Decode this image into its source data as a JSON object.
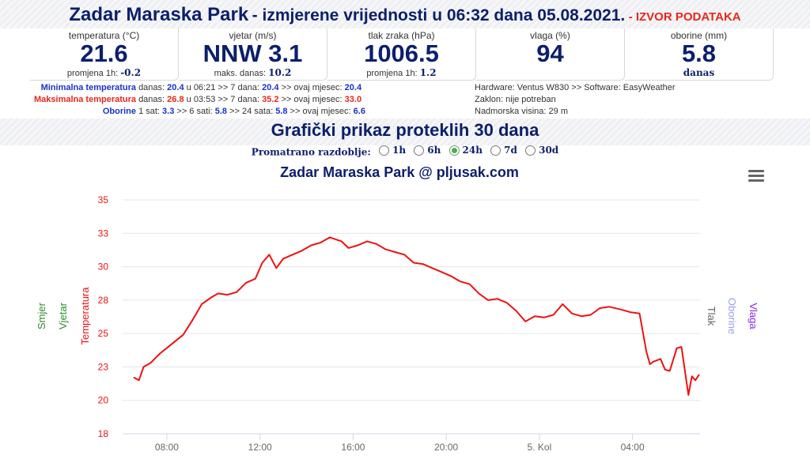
{
  "header": {
    "station": "Zadar Maraska Park",
    "text": "- izmjerene vrijednosti u 06:32 dana 05.08.2021.",
    "source_link": "- IZVOR PODATAKA"
  },
  "metrics": [
    {
      "label": "temperatura (°C)",
      "value": "21.6",
      "sub_label": "promjena 1h:",
      "sub_value": "-0.2"
    },
    {
      "label": "vjetar (m/s)",
      "value": "NNW 3.1",
      "sub_label": "maks. danas:",
      "sub_value": "10.2"
    },
    {
      "label": "tlak zraka (hPa)",
      "value": "1006.5",
      "sub_label": "promjena 1h:",
      "sub_value": "1.2"
    },
    {
      "label": "vlaga (%)",
      "value": "94",
      "sub_label": "",
      "sub_value": ""
    },
    {
      "label": "oborine (mm)",
      "value": "5.8",
      "sub_label": "danas",
      "sub_value": ""
    }
  ],
  "stats": {
    "min": {
      "label": "Minimalna temperatura",
      "p1": "danas:",
      "v1": "20.4",
      "p2": "u 06:21 >> 7 dana:",
      "v2": "20.4",
      "p3": ">> ovaj mjesec:",
      "v3": "20.4"
    },
    "max": {
      "label": "Maksimalna temperatura",
      "p1": "danas:",
      "v1": "26.8",
      "p2": "u 03:53 >> 7 dana:",
      "v2": "35.2",
      "p3": ">> ovaj mjesec:",
      "v3": "33.0"
    },
    "rain": {
      "label": "Oborine",
      "p1": "1 sat:",
      "v1": "3.3",
      "p2": ">> 6 sati:",
      "v2": "5.8",
      "p3": ">> 24 sata:",
      "v3": "5.8",
      "p4": ">> ovaj mjesec:",
      "v4": "6.6"
    }
  },
  "station_info": {
    "hardware": "Hardware: Ventus W830 >> Software: EasyWeather",
    "shelter": "Zaklon: nije potreban",
    "altitude": "Nadmorska visina: 29 m"
  },
  "section_title": "Grafički prikaz proteklih 30 dana",
  "period": {
    "label": "Promatrano razdoblje:",
    "options": [
      "1h",
      "6h",
      "24h",
      "7d",
      "30d"
    ],
    "selected": "24h"
  },
  "chart_data": {
    "type": "line",
    "title": "Zadar Maraska Park @ pljusak.com",
    "y_ticks": [
      "35",
      "33",
      "30",
      "28",
      "25",
      "23",
      "20",
      "18"
    ],
    "x_ticks": [
      "08:00",
      "12:00",
      "16:00",
      "20:00",
      "5. Kol",
      "04:00"
    ],
    "left_axis_titles": [
      "Smjer",
      "Vjetar",
      "Temperatura"
    ],
    "right_axis_titles": [
      "Tlak",
      "Oborine",
      "Vlaga"
    ],
    "series": [
      {
        "name": "Temperatura",
        "color": "#ee1111",
        "x": [
          6.6,
          6.8,
          7.0,
          7.3,
          7.7,
          8.2,
          8.7,
          9.1,
          9.5,
          9.9,
          10.2,
          10.6,
          11.0,
          11.4,
          11.8,
          12.1,
          12.4,
          12.7,
          13.0,
          13.4,
          13.8,
          14.2,
          14.6,
          15.0,
          15.5,
          15.8,
          16.2,
          16.6,
          17.0,
          17.4,
          17.8,
          18.2,
          18.6,
          19.0,
          19.4,
          19.8,
          20.2,
          20.6,
          21.0,
          21.4,
          21.8,
          22.2,
          22.6,
          23.0,
          23.4,
          23.8,
          24.2,
          24.6,
          25.0,
          25.4,
          25.8,
          26.2,
          26.6,
          27.0,
          27.5,
          27.9,
          28.3,
          28.6,
          28.75,
          28.9,
          29.2,
          29.4,
          29.6,
          29.9,
          30.1,
          30.4,
          30.55,
          30.7,
          30.85
        ],
        "y": [
          21.7,
          21.5,
          22.5,
          22.8,
          23.5,
          24.2,
          24.9,
          26.0,
          27.2,
          27.7,
          28.0,
          27.9,
          28.1,
          28.8,
          29.1,
          30.3,
          30.9,
          29.9,
          30.6,
          30.9,
          31.2,
          31.6,
          31.8,
          32.2,
          31.9,
          31.4,
          31.6,
          31.9,
          31.7,
          31.3,
          31.1,
          30.9,
          30.3,
          30.2,
          29.9,
          29.6,
          29.3,
          28.9,
          28.7,
          28.0,
          27.5,
          27.6,
          27.3,
          26.7,
          25.9,
          26.3,
          26.2,
          26.4,
          27.2,
          26.5,
          26.3,
          26.4,
          26.9,
          27.0,
          26.8,
          26.6,
          26.5,
          23.6,
          22.7,
          22.9,
          23.1,
          22.3,
          22.2,
          23.9,
          24.0,
          20.4,
          21.8,
          21.5,
          21.9
        ]
      }
    ],
    "x_range": [
      6.1,
      30.9
    ],
    "y_range": [
      17.5,
      35.0
    ]
  }
}
